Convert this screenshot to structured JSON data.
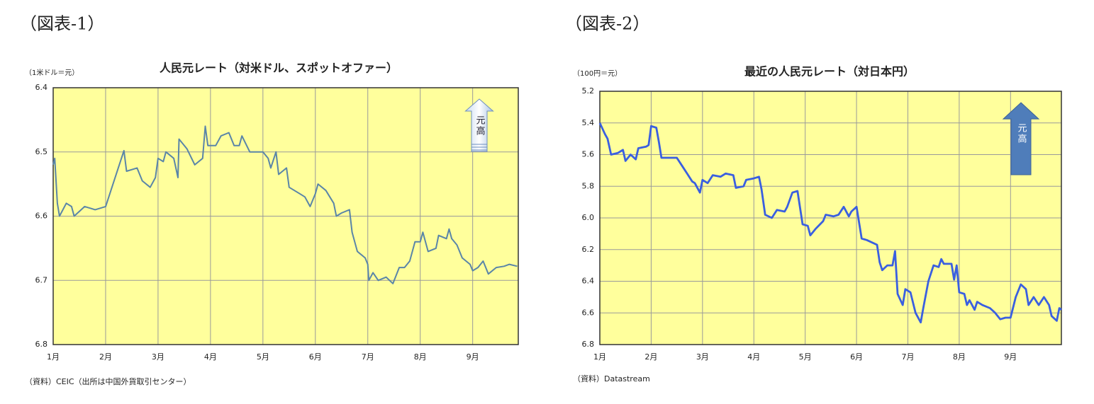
{
  "chart_data": [
    {
      "type": "line",
      "figure_label": "（図表-1）",
      "title": "人民元レート（対米ドル、スポットオファー）",
      "unit_label": "（1米ドル＝元）",
      "annotation": "元高",
      "source": "（資料）CEIC（出所は中国外貨取引センター）",
      "background": "#ffff9c",
      "grid": true,
      "y_inverted": true,
      "xlim": [
        1,
        9.87
      ],
      "ylim": [
        6.4,
        6.8
      ],
      "xticks": [
        {
          "value": 1,
          "label": "1月"
        },
        {
          "value": 2,
          "label": "2月"
        },
        {
          "value": 3,
          "label": "3月"
        },
        {
          "value": 4,
          "label": "4月"
        },
        {
          "value": 5,
          "label": "5月"
        },
        {
          "value": 6,
          "label": "6月"
        },
        {
          "value": 7,
          "label": "7月"
        },
        {
          "value": 8,
          "label": "8月"
        },
        {
          "value": 9,
          "label": "9月"
        }
      ],
      "yticks": [
        6.4,
        6.5,
        6.6,
        6.7,
        6.8
      ],
      "series": [
        {
          "color": "#5a85a8",
          "x": [
            1.0,
            1.03,
            1.08,
            1.12,
            1.25,
            1.35,
            1.4,
            1.6,
            1.8,
            2.0,
            2.35,
            2.4,
            2.6,
            2.7,
            2.85,
            2.95,
            3.0,
            3.1,
            3.15,
            3.3,
            3.38,
            3.4,
            3.55,
            3.7,
            3.85,
            3.9,
            3.95,
            4.1,
            4.2,
            4.35,
            4.45,
            4.55,
            4.6,
            4.75,
            4.9,
            5.0,
            5.1,
            5.15,
            5.25,
            5.3,
            5.45,
            5.5,
            5.7,
            5.8,
            5.9,
            6.0,
            6.05,
            6.2,
            6.35,
            6.4,
            6.5,
            6.65,
            6.7,
            6.8,
            6.95,
            7.0,
            7.02,
            7.1,
            7.2,
            7.35,
            7.48,
            7.6,
            7.7,
            7.8,
            7.9,
            8.0,
            8.05,
            8.15,
            8.3,
            8.35,
            8.5,
            8.55,
            8.6,
            8.7,
            8.8,
            8.95,
            9.0,
            9.1,
            9.2,
            9.3,
            9.45,
            9.6,
            9.7,
            9.85
          ],
          "values": [
            6.52,
            6.51,
            6.58,
            6.6,
            6.58,
            6.585,
            6.6,
            6.585,
            6.59,
            6.585,
            6.498,
            6.53,
            6.525,
            6.545,
            6.555,
            6.54,
            6.51,
            6.515,
            6.5,
            6.51,
            6.54,
            6.48,
            6.495,
            6.52,
            6.51,
            6.46,
            6.49,
            6.49,
            6.475,
            6.47,
            6.49,
            6.49,
            6.475,
            6.5,
            6.5,
            6.5,
            6.51,
            6.525,
            6.5,
            6.535,
            6.525,
            6.555,
            6.565,
            6.57,
            6.585,
            6.565,
            6.55,
            6.56,
            6.58,
            6.6,
            6.595,
            6.59,
            6.625,
            6.655,
            6.665,
            6.675,
            6.7,
            6.688,
            6.7,
            6.695,
            6.705,
            6.68,
            6.68,
            6.67,
            6.64,
            6.64,
            6.625,
            6.655,
            6.65,
            6.63,
            6.635,
            6.62,
            6.635,
            6.645,
            6.665,
            6.675,
            6.685,
            6.68,
            6.67,
            6.69,
            6.68,
            6.678,
            6.675,
            6.678
          ]
        }
      ]
    },
    {
      "type": "line",
      "figure_label": "（図表-2）",
      "title": "最近の人民元レート（対日本円）",
      "unit_label": "（100円＝元）",
      "annotation": "元高",
      "source": "（資料）Datastream",
      "background": "#ffff9c",
      "grid": true,
      "y_inverted": true,
      "xlim": [
        1,
        9.99
      ],
      "ylim": [
        5.2,
        6.8
      ],
      "xticks": [
        {
          "value": 1,
          "label": "1月"
        },
        {
          "value": 2,
          "label": "2月"
        },
        {
          "value": 3,
          "label": "3月"
        },
        {
          "value": 4,
          "label": "4月"
        },
        {
          "value": 5,
          "label": "5月"
        },
        {
          "value": 6,
          "label": "6月"
        },
        {
          "value": 7,
          "label": "7月"
        },
        {
          "value": 8,
          "label": "8月"
        },
        {
          "value": 9,
          "label": "9月"
        }
      ],
      "yticks": [
        5.2,
        5.4,
        5.6,
        5.8,
        {
          "value": 6,
          "label": "6.0"
        },
        6.2,
        6.4,
        6.6,
        6.8
      ],
      "series": [
        {
          "color": "#3a5fe0",
          "x": [
            1.0,
            1.1,
            1.15,
            1.22,
            1.35,
            1.45,
            1.5,
            1.6,
            1.7,
            1.75,
            1.9,
            1.95,
            2.0,
            2.1,
            2.15,
            2.2,
            2.5,
            2.6,
            2.7,
            2.8,
            2.85,
            2.95,
            3.0,
            3.1,
            3.2,
            3.35,
            3.45,
            3.6,
            3.65,
            3.8,
            3.85,
            4.0,
            4.1,
            4.15,
            4.22,
            4.35,
            4.45,
            4.6,
            4.65,
            4.75,
            4.85,
            4.95,
            5.05,
            5.1,
            5.2,
            5.35,
            5.4,
            5.55,
            5.65,
            5.75,
            5.85,
            5.9,
            6.0,
            6.1,
            6.2,
            6.4,
            6.45,
            6.5,
            6.6,
            6.7,
            6.75,
            6.8,
            6.9,
            6.95,
            7.05,
            7.15,
            7.25,
            7.3,
            7.4,
            7.5,
            7.6,
            7.65,
            7.7,
            7.85,
            7.9,
            7.95,
            8.0,
            8.1,
            8.15,
            8.2,
            8.3,
            8.35,
            8.45,
            8.6,
            8.7,
            8.8,
            8.9,
            9.0,
            9.1,
            9.2,
            9.3,
            9.35,
            9.45,
            9.55,
            9.65,
            9.75,
            9.8,
            9.9,
            9.95,
            9.99
          ],
          "values": [
            5.4,
            5.47,
            5.5,
            5.6,
            5.59,
            5.57,
            5.64,
            5.6,
            5.63,
            5.56,
            5.55,
            5.54,
            5.42,
            5.43,
            5.52,
            5.62,
            5.62,
            5.67,
            5.72,
            5.77,
            5.78,
            5.84,
            5.76,
            5.78,
            5.73,
            5.74,
            5.72,
            5.73,
            5.81,
            5.8,
            5.76,
            5.75,
            5.74,
            5.82,
            5.98,
            6.0,
            5.95,
            5.96,
            5.93,
            5.84,
            5.83,
            6.04,
            6.05,
            6.11,
            6.07,
            6.02,
            5.98,
            5.99,
            5.98,
            5.93,
            5.99,
            5.96,
            5.93,
            6.13,
            6.14,
            6.17,
            6.28,
            6.33,
            6.3,
            6.3,
            6.21,
            6.48,
            6.55,
            6.45,
            6.47,
            6.6,
            6.66,
            6.57,
            6.4,
            6.3,
            6.31,
            6.26,
            6.29,
            6.29,
            6.39,
            6.3,
            6.47,
            6.48,
            6.55,
            6.52,
            6.58,
            6.53,
            6.55,
            6.57,
            6.6,
            6.64,
            6.63,
            6.63,
            6.5,
            6.42,
            6.45,
            6.55,
            6.5,
            6.55,
            6.5,
            6.55,
            6.62,
            6.65,
            6.57,
            6.58
          ]
        }
      ]
    }
  ]
}
